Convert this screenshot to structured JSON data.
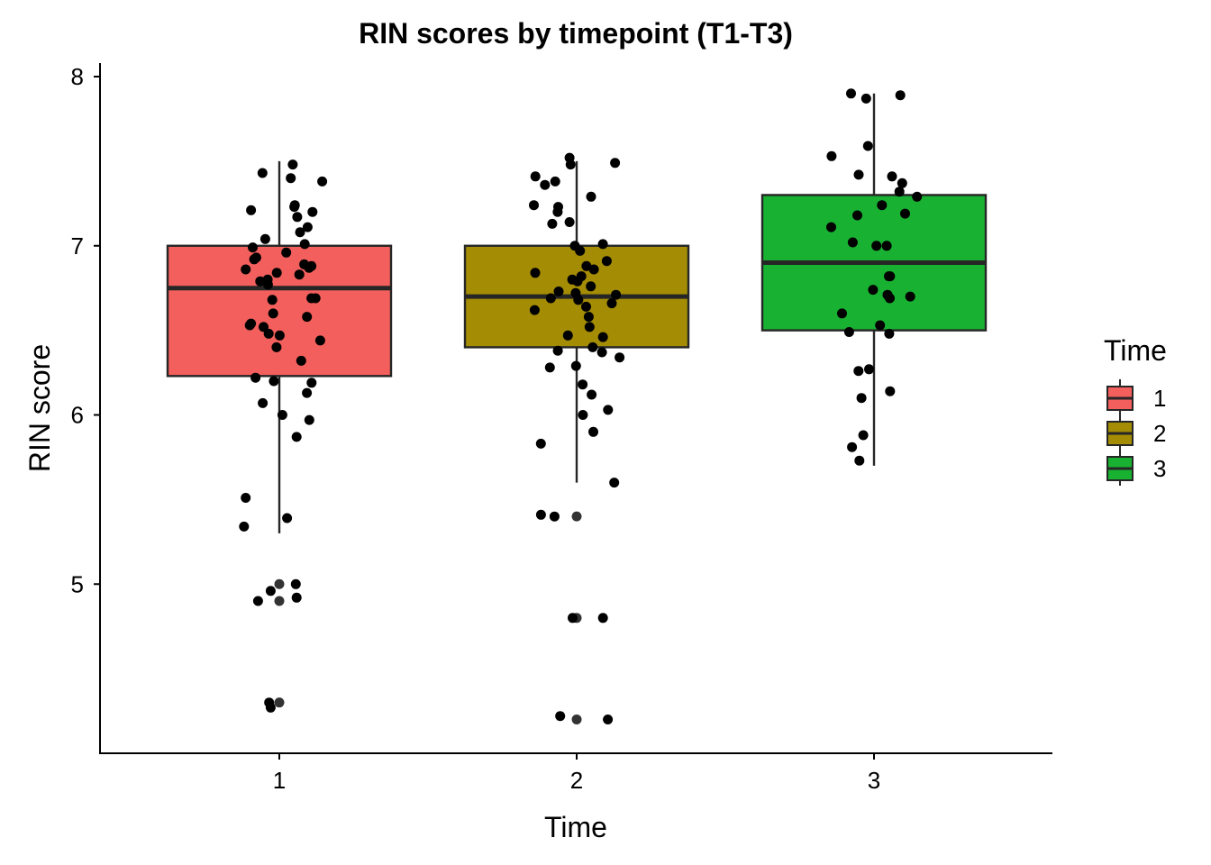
{
  "chart_data": {
    "type": "boxplot",
    "title": "RIN scores by timepoint (T1-T3)",
    "xlabel": "Time",
    "ylabel": "RIN score",
    "categories": [
      "1",
      "2",
      "3"
    ],
    "ylim": [
      4.0,
      8.08
    ],
    "yticks": [
      5,
      6,
      7,
      8
    ],
    "yticklabels": [
      "5",
      "6",
      "7",
      "8"
    ],
    "legend": {
      "title": "Time",
      "position": "right",
      "entries": [
        "1",
        "2",
        "3"
      ]
    },
    "colors": {
      "1": "#F25F5C",
      "2": "#A48C04",
      "3": "#18B132"
    },
    "boxes": [
      {
        "category": "1",
        "q1": 6.23,
        "median": 6.75,
        "q3": 7.0,
        "whisker_low": 5.3,
        "whisker_high": 7.5,
        "outliers": [
          5.0,
          4.9,
          4.3
        ]
      },
      {
        "category": "2",
        "q1": 6.4,
        "median": 6.7,
        "q3": 7.0,
        "whisker_low": 5.6,
        "whisker_high": 7.5,
        "outliers": [
          5.4,
          4.8,
          4.2
        ]
      },
      {
        "category": "3",
        "q1": 6.5,
        "median": 6.9,
        "q3": 7.3,
        "whisker_low": 5.7,
        "whisker_high": 7.9,
        "outliers": []
      }
    ],
    "points": [
      {
        "x": 1,
        "y": 7.48
      },
      {
        "x": 1,
        "y": 7.43
      },
      {
        "x": 1,
        "y": 7.4
      },
      {
        "x": 1,
        "y": 7.38
      },
      {
        "x": 1,
        "y": 7.24
      },
      {
        "x": 1,
        "y": 7.23
      },
      {
        "x": 1,
        "y": 7.21
      },
      {
        "x": 1,
        "y": 7.2
      },
      {
        "x": 1,
        "y": 7.17
      },
      {
        "x": 1,
        "y": 7.11
      },
      {
        "x": 1,
        "y": 7.08
      },
      {
        "x": 1,
        "y": 7.04
      },
      {
        "x": 1,
        "y": 7.01
      },
      {
        "x": 1,
        "y": 6.99
      },
      {
        "x": 1,
        "y": 6.96
      },
      {
        "x": 1,
        "y": 6.93
      },
      {
        "x": 1,
        "y": 6.92
      },
      {
        "x": 1,
        "y": 6.89
      },
      {
        "x": 1,
        "y": 6.88
      },
      {
        "x": 1,
        "y": 6.87
      },
      {
        "x": 1,
        "y": 6.86
      },
      {
        "x": 1,
        "y": 6.84
      },
      {
        "x": 1,
        "y": 6.83
      },
      {
        "x": 1,
        "y": 6.8
      },
      {
        "x": 1,
        "y": 6.79
      },
      {
        "x": 1,
        "y": 6.77
      },
      {
        "x": 1,
        "y": 6.69
      },
      {
        "x": 1,
        "y": 6.69
      },
      {
        "x": 1,
        "y": 6.68
      },
      {
        "x": 1,
        "y": 6.6
      },
      {
        "x": 1,
        "y": 6.58
      },
      {
        "x": 1,
        "y": 6.54
      },
      {
        "x": 1,
        "y": 6.53
      },
      {
        "x": 1,
        "y": 6.52
      },
      {
        "x": 1,
        "y": 6.48
      },
      {
        "x": 1,
        "y": 6.47
      },
      {
        "x": 1,
        "y": 6.44
      },
      {
        "x": 1,
        "y": 6.4
      },
      {
        "x": 1,
        "y": 6.32
      },
      {
        "x": 1,
        "y": 6.22
      },
      {
        "x": 1,
        "y": 6.2
      },
      {
        "x": 1,
        "y": 6.19
      },
      {
        "x": 1,
        "y": 6.13
      },
      {
        "x": 1,
        "y": 6.07
      },
      {
        "x": 1,
        "y": 6.0
      },
      {
        "x": 1,
        "y": 5.97
      },
      {
        "x": 1,
        "y": 5.87
      },
      {
        "x": 1,
        "y": 5.51
      },
      {
        "x": 1,
        "y": 5.39
      },
      {
        "x": 1,
        "y": 5.34
      },
      {
        "x": 1,
        "y": 5.0
      },
      {
        "x": 1,
        "y": 4.96
      },
      {
        "x": 1,
        "y": 4.92
      },
      {
        "x": 1,
        "y": 4.9
      },
      {
        "x": 1,
        "y": 4.3
      },
      {
        "x": 1,
        "y": 4.27
      },
      {
        "x": 2,
        "y": 7.52
      },
      {
        "x": 2,
        "y": 7.49
      },
      {
        "x": 2,
        "y": 7.48
      },
      {
        "x": 2,
        "y": 7.41
      },
      {
        "x": 2,
        "y": 7.38
      },
      {
        "x": 2,
        "y": 7.36
      },
      {
        "x": 2,
        "y": 7.29
      },
      {
        "x": 2,
        "y": 7.24
      },
      {
        "x": 2,
        "y": 7.23
      },
      {
        "x": 2,
        "y": 7.2
      },
      {
        "x": 2,
        "y": 7.14
      },
      {
        "x": 2,
        "y": 7.13
      },
      {
        "x": 2,
        "y": 7.01
      },
      {
        "x": 2,
        "y": 7.0
      },
      {
        "x": 2,
        "y": 6.97
      },
      {
        "x": 2,
        "y": 6.91
      },
      {
        "x": 2,
        "y": 6.88
      },
      {
        "x": 2,
        "y": 6.86
      },
      {
        "x": 2,
        "y": 6.84
      },
      {
        "x": 2,
        "y": 6.82
      },
      {
        "x": 2,
        "y": 6.8
      },
      {
        "x": 2,
        "y": 6.79
      },
      {
        "x": 2,
        "y": 6.76
      },
      {
        "x": 2,
        "y": 6.73
      },
      {
        "x": 2,
        "y": 6.72
      },
      {
        "x": 2,
        "y": 6.71
      },
      {
        "x": 2,
        "y": 6.69
      },
      {
        "x": 2,
        "y": 6.68
      },
      {
        "x": 2,
        "y": 6.66
      },
      {
        "x": 2,
        "y": 6.64
      },
      {
        "x": 2,
        "y": 6.62
      },
      {
        "x": 2,
        "y": 6.58
      },
      {
        "x": 2,
        "y": 6.52
      },
      {
        "x": 2,
        "y": 6.47
      },
      {
        "x": 2,
        "y": 6.46
      },
      {
        "x": 2,
        "y": 6.4
      },
      {
        "x": 2,
        "y": 6.38
      },
      {
        "x": 2,
        "y": 6.37
      },
      {
        "x": 2,
        "y": 6.34
      },
      {
        "x": 2,
        "y": 6.29
      },
      {
        "x": 2,
        "y": 6.28
      },
      {
        "x": 2,
        "y": 6.18
      },
      {
        "x": 2,
        "y": 6.12
      },
      {
        "x": 2,
        "y": 6.03
      },
      {
        "x": 2,
        "y": 6.0
      },
      {
        "x": 2,
        "y": 5.9
      },
      {
        "x": 2,
        "y": 5.83
      },
      {
        "x": 2,
        "y": 5.6
      },
      {
        "x": 2,
        "y": 5.41
      },
      {
        "x": 2,
        "y": 5.4
      },
      {
        "x": 2,
        "y": 4.8
      },
      {
        "x": 2,
        "y": 4.8
      },
      {
        "x": 2,
        "y": 4.22
      },
      {
        "x": 2,
        "y": 4.2
      },
      {
        "x": 3,
        "y": 7.9
      },
      {
        "x": 3,
        "y": 7.89
      },
      {
        "x": 3,
        "y": 7.87
      },
      {
        "x": 3,
        "y": 7.59
      },
      {
        "x": 3,
        "y": 7.53
      },
      {
        "x": 3,
        "y": 7.42
      },
      {
        "x": 3,
        "y": 7.41
      },
      {
        "x": 3,
        "y": 7.37
      },
      {
        "x": 3,
        "y": 7.32
      },
      {
        "x": 3,
        "y": 7.29
      },
      {
        "x": 3,
        "y": 7.24
      },
      {
        "x": 3,
        "y": 7.19
      },
      {
        "x": 3,
        "y": 7.18
      },
      {
        "x": 3,
        "y": 7.11
      },
      {
        "x": 3,
        "y": 7.02
      },
      {
        "x": 3,
        "y": 7.0
      },
      {
        "x": 3,
        "y": 7.0
      },
      {
        "x": 3,
        "y": 6.82
      },
      {
        "x": 3,
        "y": 6.82
      },
      {
        "x": 3,
        "y": 6.74
      },
      {
        "x": 3,
        "y": 6.71
      },
      {
        "x": 3,
        "y": 6.7
      },
      {
        "x": 3,
        "y": 6.69
      },
      {
        "x": 3,
        "y": 6.6
      },
      {
        "x": 3,
        "y": 6.53
      },
      {
        "x": 3,
        "y": 6.49
      },
      {
        "x": 3,
        "y": 6.48
      },
      {
        "x": 3,
        "y": 6.27
      },
      {
        "x": 3,
        "y": 6.26
      },
      {
        "x": 3,
        "y": 6.14
      },
      {
        "x": 3,
        "y": 6.1
      },
      {
        "x": 3,
        "y": 5.88
      },
      {
        "x": 3,
        "y": 5.81
      },
      {
        "x": 3,
        "y": 5.73
      }
    ]
  }
}
